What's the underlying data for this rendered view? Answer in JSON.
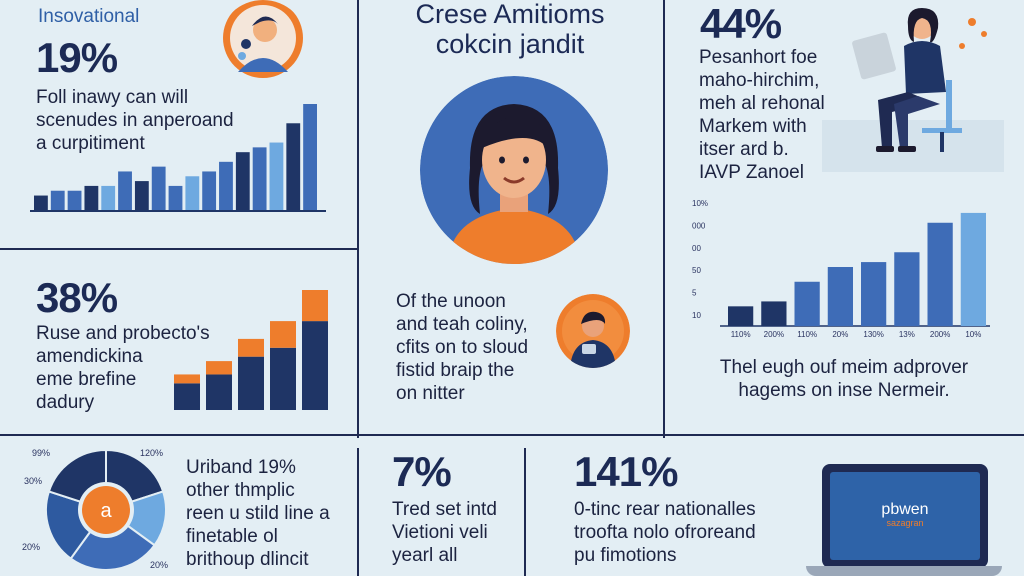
{
  "header": {
    "brand": "Insovational",
    "title_line1": "Crese Amitioms",
    "title_line2": "cokcin jandit"
  },
  "block1": {
    "stat": "19%",
    "lines": [
      "Foll inawy can will",
      "scenudes in anperoand",
      "a curpitiment"
    ]
  },
  "block2": {
    "stat": "38%",
    "lines": [
      "Ruse and probecto's",
      "amendickina",
      "eme brefine",
      "dadury"
    ]
  },
  "block3": {
    "stat": "44%",
    "lines": [
      "Pesanhort foe",
      "maho-hirchim,",
      "meh al rehonal",
      "Markem with",
      "itser ard b.",
      "IAVP Zanoel"
    ]
  },
  "center_text": {
    "lines": [
      "Of the unoon",
      "and teah coliny,",
      "cfits on to sloud",
      "fistid braip the",
      "on nitter"
    ]
  },
  "right_chart": {
    "y_ticks": [
      "10%",
      "000",
      "00",
      "50",
      "5",
      "10"
    ],
    "x_ticks": [
      "110%",
      "200%",
      "110%",
      "20%",
      "130%",
      "13%",
      "200%",
      "10%"
    ],
    "caption": [
      "Thel eugh ouf meim adprover",
      "hagems on inse Nermeir."
    ]
  },
  "pie": {
    "labels": [
      "99%",
      "120%",
      "30%",
      "20%",
      "20%"
    ],
    "center_label": "a"
  },
  "bottom1": {
    "lines": [
      "Uriband 19%",
      "other thmplic",
      "reen u stild line a",
      "finetable ol",
      "brithoup dlincit"
    ]
  },
  "bottom2": {
    "stat": "7%",
    "lines": [
      "Tred set intd",
      "Vietioni veli",
      "yearl all"
    ]
  },
  "bottom3": {
    "stat": "141%",
    "lines": [
      "0-tinc rear nationalles",
      "troofta nolo ofroreand",
      "pu fimotions"
    ]
  },
  "laptop": {
    "screen_line1": "pbwen",
    "screen_line2": "sazagran"
  },
  "chart_data": [
    {
      "type": "bar",
      "series": [
        {
          "values": [
            3,
            4,
            4,
            5,
            5,
            8,
            6,
            9,
            5,
            7,
            8,
            10,
            12,
            13,
            14,
            18,
            22
          ]
        }
      ]
    },
    {
      "type": "bar",
      "series": [
        {
          "values": [
            3,
            4,
            6,
            7,
            10
          ]
        },
        {
          "values": [
            1,
            1.5,
            2,
            3,
            3.5
          ]
        }
      ]
    },
    {
      "type": "bar",
      "categories": [
        "110%",
        "200%",
        "110%",
        "20%",
        "130%",
        "13%",
        "200%",
        "10%"
      ],
      "series": [
        {
          "values": [
            2,
            2.5,
            4.5,
            6,
            6.5,
            7.5,
            10.5,
            11.5
          ]
        }
      ]
    },
    {
      "type": "pie",
      "series": [
        {
          "values": [
            20,
            15,
            25,
            20,
            20
          ]
        }
      ]
    }
  ],
  "colors": {
    "navy": "#1f3566",
    "mid_blue": "#3e6cb7",
    "light_blue": "#6ea9e0",
    "orange": "#ee7d2c",
    "background": "#e3eef4"
  }
}
